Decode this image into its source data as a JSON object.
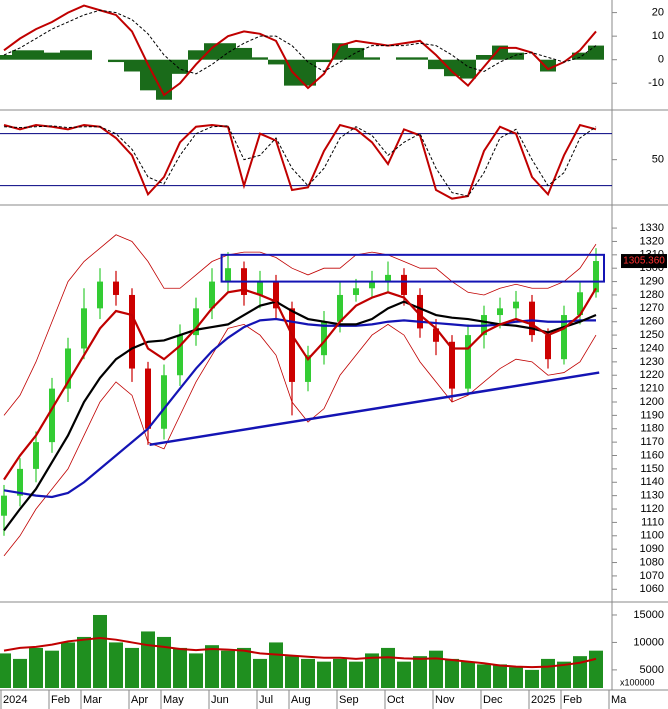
{
  "chart_data": [
    {
      "type": "macd",
      "ylim": [
        -20.5,
        24.5
      ],
      "yticks": [
        20,
        10,
        0,
        -10
      ],
      "series": [
        {
          "style": "line",
          "color": "#c00000",
          "values": [
            4,
            9,
            13,
            16,
            20,
            23,
            21,
            19,
            12,
            -2,
            -15,
            -10,
            -2,
            5,
            10,
            12,
            11,
            8,
            -5,
            -12,
            -6,
            6,
            8,
            7,
            6,
            7,
            8,
            2,
            -5,
            -11,
            -3,
            5,
            5,
            3,
            -4,
            -1,
            4,
            12,
            null
          ]
        },
        {
          "style": "dashed",
          "color": "#000000",
          "values": [
            2,
            5,
            9,
            13,
            16,
            19,
            21,
            20,
            17,
            11,
            2,
            -4,
            -6,
            -2,
            3,
            7,
            10,
            10,
            6,
            -1,
            -5,
            -1,
            3,
            6,
            6,
            6,
            7,
            6,
            2,
            -3,
            -5,
            -1,
            2,
            3,
            1,
            -1,
            1,
            6,
            null
          ]
        },
        {
          "style": "histogram",
          "color": "#1a6b1a",
          "values": [
            2,
            4,
            4,
            3,
            4,
            4,
            0,
            -1,
            -5,
            -13,
            -17,
            -6,
            4,
            7,
            7,
            5,
            1,
            -2,
            -11,
            -11,
            -1,
            7,
            5,
            1,
            0,
            1,
            1,
            -4,
            -7,
            -8,
            2,
            6,
            3,
            0,
            -5,
            0,
            3,
            6,
            null
          ]
        }
      ]
    },
    {
      "type": "oscillator",
      "ylim": [
        0,
        105
      ],
      "yticks": [
        50
      ],
      "levels": [
        80,
        20
      ],
      "level_color": "#000080",
      "series": [
        {
          "style": "line",
          "color": "#c00000",
          "values": [
            90,
            85,
            90,
            88,
            85,
            90,
            88,
            75,
            55,
            10,
            30,
            70,
            88,
            90,
            88,
            20,
            80,
            72,
            15,
            18,
            60,
            90,
            85,
            70,
            45,
            85,
            78,
            15,
            5,
            8,
            60,
            88,
            80,
            30,
            10,
            55,
            90,
            85,
            null
          ]
        },
        {
          "style": "dashed",
          "color": "#000000",
          "values": [
            88,
            87,
            88,
            89,
            87,
            88,
            88,
            80,
            62,
            30,
            22,
            55,
            80,
            88,
            89,
            50,
            55,
            75,
            40,
            20,
            40,
            75,
            88,
            78,
            55,
            70,
            80,
            40,
            12,
            8,
            35,
            75,
            85,
            50,
            20,
            35,
            75,
            88,
            null
          ]
        }
      ]
    },
    {
      "type": "candlestick",
      "ylim": [
        1052,
        1345
      ],
      "yticks": [
        1060,
        1070,
        1080,
        1090,
        1100,
        1110,
        1120,
        1130,
        1140,
        1150,
        1160,
        1170,
        1180,
        1190,
        1200,
        1210,
        1220,
        1230,
        1240,
        1250,
        1260,
        1270,
        1280,
        1290,
        1300,
        1310,
        1320,
        1330
      ],
      "up_color": "#33cc33",
      "down_color": "#cc0000",
      "open": [
        1115,
        1130,
        1150,
        1170,
        1210,
        1240,
        1270,
        1290,
        1280,
        1225,
        1180,
        1220,
        1250,
        1270,
        1290,
        1300,
        1280,
        1290,
        1270,
        1215,
        1235,
        1260,
        1280,
        1285,
        1290,
        1295,
        1280,
        1255,
        1245,
        1210,
        1250,
        1265,
        1270,
        1275,
        1250,
        1232,
        1265,
        1282,
        null
      ],
      "high": [
        1138,
        1158,
        1178,
        1218,
        1248,
        1285,
        1300,
        1298,
        1285,
        1230,
        1228,
        1258,
        1278,
        1300,
        1312,
        1305,
        1298,
        1295,
        1275,
        1242,
        1268,
        1290,
        1292,
        1298,
        1305,
        1300,
        1285,
        1262,
        1250,
        1258,
        1272,
        1278,
        1283,
        1280,
        1255,
        1272,
        1290,
        1315,
        null
      ],
      "low": [
        1100,
        1122,
        1140,
        1162,
        1200,
        1232,
        1262,
        1272,
        1215,
        1168,
        1172,
        1212,
        1242,
        1262,
        1282,
        1272,
        1270,
        1262,
        1190,
        1208,
        1228,
        1252,
        1275,
        1278,
        1282,
        1272,
        1248,
        1235,
        1200,
        1205,
        1240,
        1255,
        1262,
        1245,
        1225,
        1228,
        1258,
        1278,
        null
      ],
      "close": [
        1130,
        1150,
        1170,
        1210,
        1240,
        1270,
        1290,
        1280,
        1225,
        1180,
        1220,
        1250,
        1270,
        1290,
        1300,
        1280,
        1290,
        1270,
        1215,
        1235,
        1260,
        1280,
        1285,
        1290,
        1295,
        1280,
        1255,
        1245,
        1210,
        1250,
        1265,
        1270,
        1275,
        1250,
        1232,
        1265,
        1282,
        1305.36,
        null
      ],
      "series": [
        {
          "width": 0.8,
          "color": "#c00000",
          "values": [
            1190,
            1205,
            1230,
            1260,
            1290,
            1305,
            1315,
            1325,
            1320,
            1305,
            1285,
            1285,
            1295,
            1305,
            1310,
            1312,
            1312,
            1308,
            1300,
            1295,
            1300,
            1300,
            1310,
            1312,
            1310,
            1305,
            1300,
            1300,
            1290,
            1282,
            1280,
            1285,
            1288,
            1285,
            1285,
            1290,
            1300,
            1318,
            null
          ]
        },
        {
          "width": 0.8,
          "color": "#c00000",
          "values": [
            1085,
            1100,
            1120,
            1135,
            1150,
            1175,
            1200,
            1215,
            1205,
            1170,
            1165,
            1190,
            1215,
            1235,
            1255,
            1258,
            1250,
            1235,
            1200,
            1185,
            1195,
            1220,
            1235,
            1250,
            1258,
            1250,
            1230,
            1215,
            1200,
            1205,
            1215,
            1225,
            1232,
            1230,
            1220,
            1222,
            1230,
            1250,
            null
          ]
        },
        {
          "width": 2.2,
          "color": "#1414b4",
          "values": [
            1134,
            1132,
            1130,
            1129,
            1132,
            1140,
            1150,
            1160,
            1170,
            1180,
            1195,
            1210,
            1225,
            1238,
            1248,
            1256,
            1261,
            1262,
            1260,
            1258,
            1257,
            1257,
            1257,
            1258,
            1260,
            1261,
            1260,
            1259,
            1258,
            1257,
            1257,
            1258,
            1260,
            1261,
            1260,
            1260,
            1261,
            1261,
            null
          ]
        },
        {
          "width": 2.2,
          "color": "#000000",
          "values": [
            1104,
            1120,
            1135,
            1155,
            1175,
            1200,
            1218,
            1232,
            1240,
            1245,
            1246,
            1250,
            1254,
            1256,
            1258,
            1265,
            1272,
            1275,
            1268,
            1262,
            1260,
            1258,
            1258,
            1262,
            1270,
            1275,
            1270,
            1265,
            1263,
            1262,
            1260,
            1258,
            1257,
            1255,
            1252,
            1256,
            1260,
            1265,
            null
          ]
        },
        {
          "width": 2.2,
          "color": "#c00000",
          "values": [
            1142,
            1160,
            1175,
            1195,
            1215,
            1235,
            1255,
            1268,
            1265,
            1240,
            1232,
            1242,
            1255,
            1270,
            1282,
            1284,
            1280,
            1275,
            1250,
            1232,
            1245,
            1260,
            1272,
            1278,
            1282,
            1278,
            1265,
            1255,
            1240,
            1240,
            1252,
            1258,
            1262,
            1258,
            1250,
            1255,
            1265,
            1285,
            null
          ]
        }
      ],
      "box": {
        "x": [
          13.6,
          37.5
        ],
        "y": [
          1290,
          1310
        ],
        "color": "#1414b4"
      },
      "trendline": {
        "x": [
          9.1,
          37.2
        ],
        "y": [
          1168,
          1222
        ],
        "color": "#1414b4"
      },
      "last_label": {
        "value": 1305.36,
        "label": "1305.360"
      }
    },
    {
      "type": "bar",
      "ylim": [
        1700,
        17000
      ],
      "yticks": [
        15000,
        10000,
        5000
      ],
      "unit_label": "x100000",
      "color": "#1f8f1f",
      "values": [
        8000,
        7000,
        9000,
        8500,
        10000,
        11000,
        15000,
        10000,
        9000,
        12000,
        11000,
        9000,
        8000,
        9500,
        8500,
        9000,
        7000,
        10000,
        7500,
        7000,
        6500,
        7000,
        6500,
        8000,
        9000,
        6500,
        7500,
        8500,
        7000,
        6500,
        6000,
        6000,
        5500,
        5000,
        7000,
        6500,
        7500,
        8500,
        null
      ],
      "series": [
        {
          "color": "#c00000",
          "values": [
            8500,
            9000,
            9200,
            9600,
            10200,
            10500,
            10800,
            10500,
            10000,
            9500,
            9200,
            8800,
            8600,
            8800,
            8700,
            8500,
            8000,
            7800,
            7600,
            7400,
            7200,
            7200,
            7000,
            7200,
            7300,
            7100,
            7000,
            7100,
            6800,
            6500,
            6200,
            5800,
            5600,
            5500,
            5600,
            5900,
            6300,
            7000,
            null
          ]
        }
      ],
      "categories": [
        "2024",
        null,
        null,
        "Feb",
        null,
        "Mar",
        null,
        null,
        "Apr",
        null,
        "May",
        null,
        null,
        "Jun",
        null,
        null,
        "Jul",
        null,
        "Aug",
        null,
        null,
        "Sep",
        null,
        null,
        "Oct",
        null,
        null,
        "Nov",
        null,
        null,
        "Dec",
        null,
        null,
        "2025",
        null,
        "Feb",
        null,
        null,
        "Ma"
      ]
    }
  ]
}
